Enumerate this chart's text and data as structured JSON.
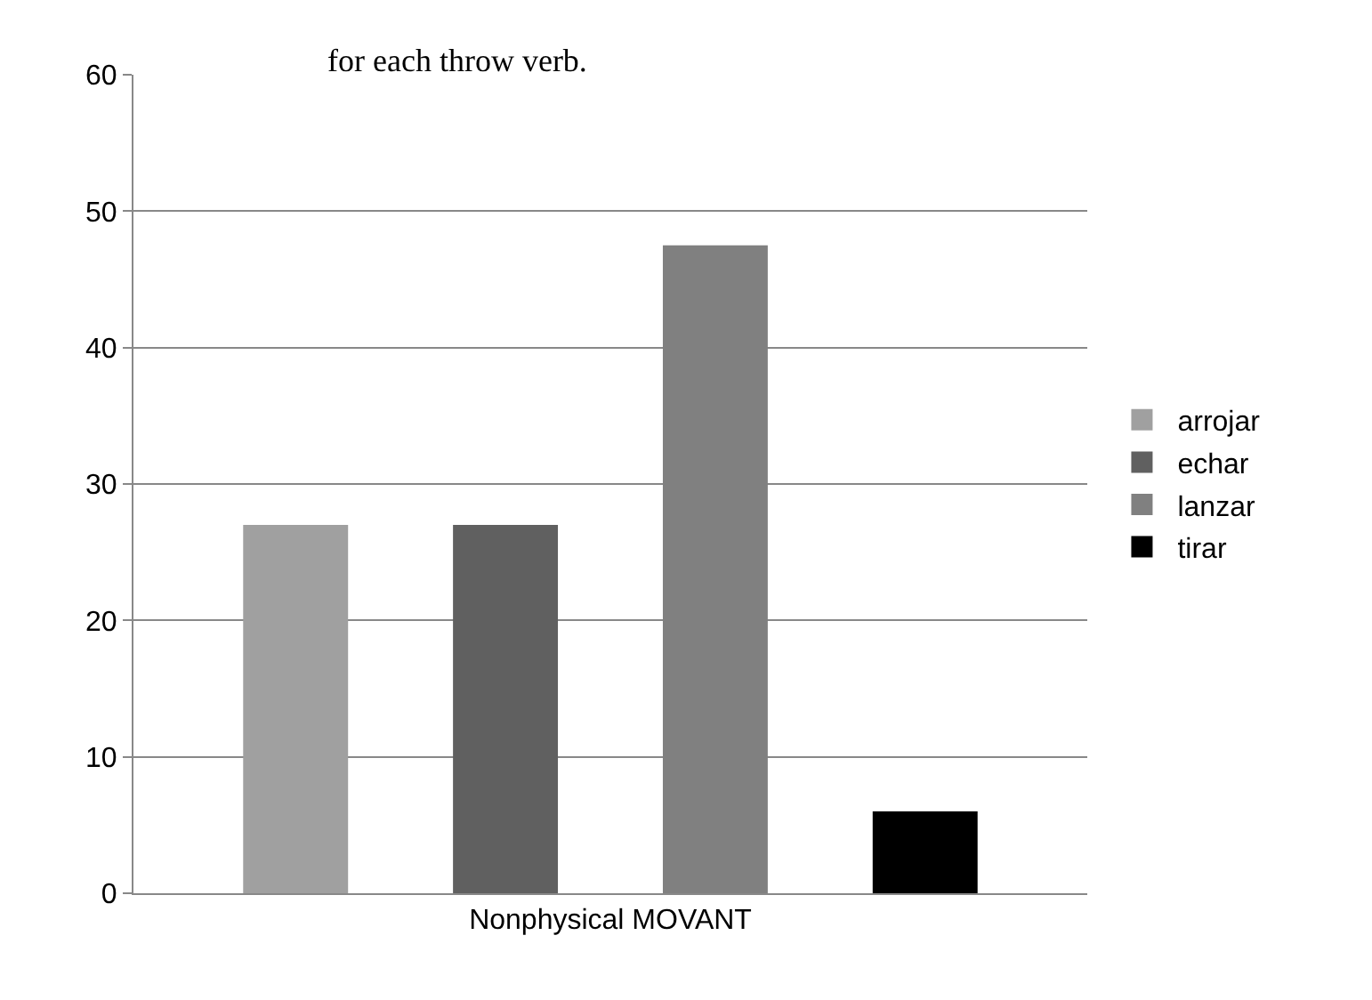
{
  "chart_data": {
    "type": "bar",
    "categories": [
      "Nonphysical MOVANT"
    ],
    "series": [
      {
        "name": "arrojar",
        "color": "#a0a0a0",
        "values": [
          27
        ]
      },
      {
        "name": "echar",
        "color": "#606060",
        "values": [
          27
        ]
      },
      {
        "name": "lanzar",
        "color": "#808080",
        "values": [
          47.5
        ]
      },
      {
        "name": "tirar",
        "color": "#000000",
        "values": [
          6
        ]
      }
    ],
    "ylim": [
      0,
      60
    ],
    "yticks": [
      0,
      10,
      20,
      30,
      40,
      50,
      60
    ],
    "grid": "y",
    "legend": "right",
    "annotations": [
      "for each throw verb."
    ]
  }
}
